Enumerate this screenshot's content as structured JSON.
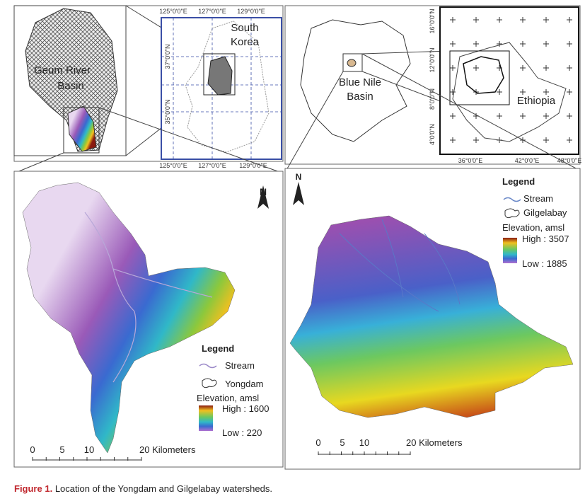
{
  "korea_inset": {
    "basin_label": [
      "Geum River",
      "Basin"
    ],
    "country_label": [
      "South",
      "Korea"
    ],
    "lon_labels": [
      "125°0'0\"E",
      "127°0'0\"E",
      "129°0'0\"E"
    ],
    "lat_labels": [
      "37°0'0\"N",
      "35°0'0\"N"
    ]
  },
  "ethiopia_inset": {
    "basin_label": [
      "Blue Nile",
      "Basin"
    ],
    "country_label": "Ethiopia",
    "lat_labels": [
      "16°0'0\"N",
      "12°0'0\"N",
      "8°0'0\"N",
      "4°0'0\"N"
    ],
    "lon_labels": [
      "36°0'0\"E",
      "42°0'0\"E",
      "48°0'0\"E"
    ]
  },
  "yongdam_map": {
    "north": "N",
    "legend": {
      "title": "Legend",
      "stream": "Stream",
      "watershed": "Yongdam",
      "elevation": "Elevation, amsl",
      "high": "High : 1600",
      "low": "Low : 220"
    },
    "scale": [
      "0",
      "5",
      "10",
      "20 Kilometers"
    ]
  },
  "gilgelabay_map": {
    "north": "N",
    "legend": {
      "title": "Legend",
      "stream": "Stream",
      "watershed": "Gilgelabay",
      "elevation": "Elevation, amsl",
      "high": "High : 3507",
      "low": "Low : 1885"
    },
    "scale": [
      "0",
      "5",
      "10",
      "20 Kilometers"
    ]
  },
  "caption": {
    "label": "Figure 1.",
    "text": "Location of the Yongdam and Gilgelabay watersheds."
  }
}
